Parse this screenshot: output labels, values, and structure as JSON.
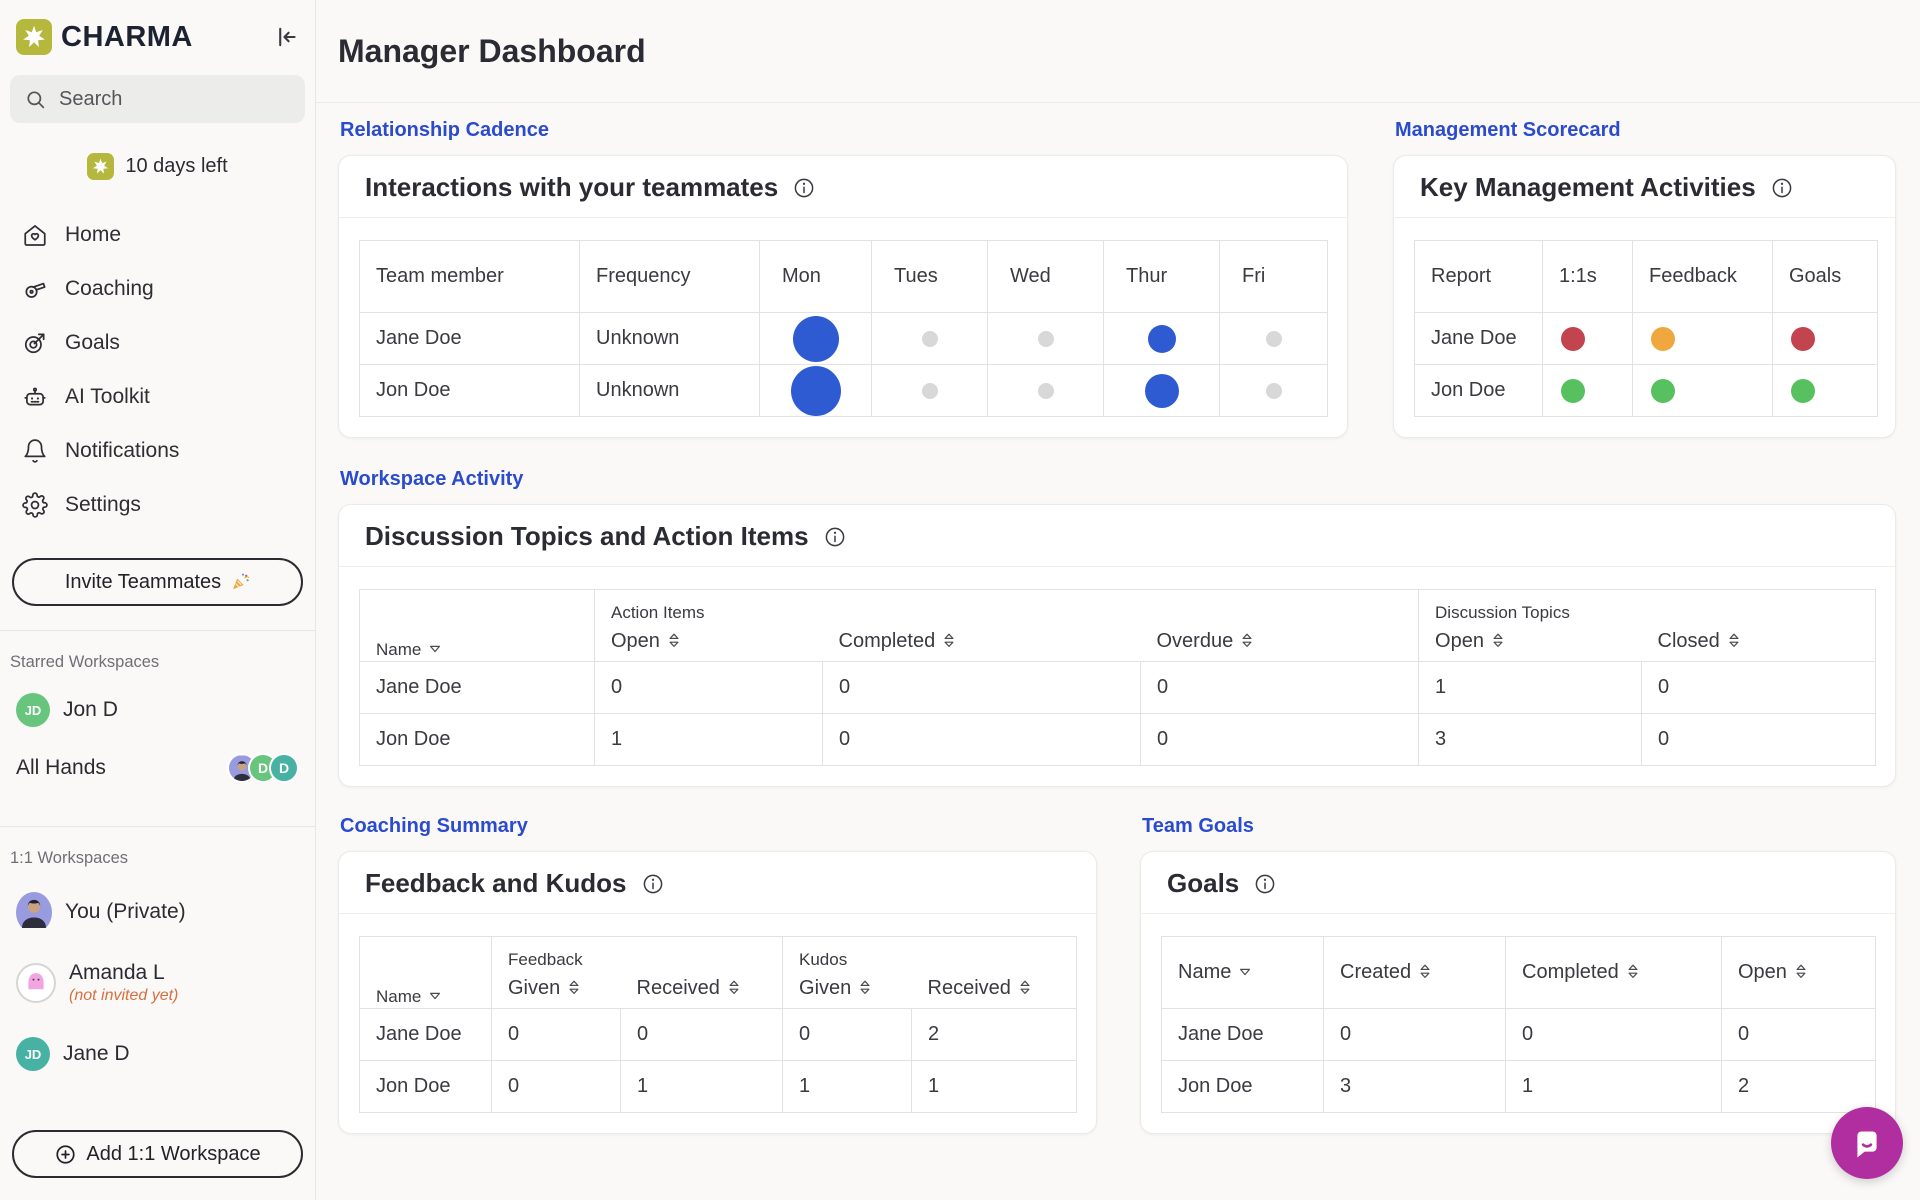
{
  "colors": {
    "blue": "#2E5BD1",
    "gray": "#D8D8D8",
    "red": "#C2444E",
    "yellow": "#EFA73E",
    "green": "#57C15F"
  },
  "brand": {
    "name": "CHARMA",
    "trial": "10 days left"
  },
  "sidebar": {
    "search_placeholder": "Search",
    "nav": [
      {
        "label": "Home"
      },
      {
        "label": "Coaching"
      },
      {
        "label": "Goals"
      },
      {
        "label": "AI Toolkit"
      },
      {
        "label": "Notifications"
      },
      {
        "label": "Settings"
      }
    ],
    "invite_button": "Invite Teammates",
    "starred_label": "Starred Workspaces",
    "starred": [
      {
        "name": "Jon D",
        "initials": "JD"
      },
      {
        "name": "All Hands",
        "cluster_initials": [
          "D",
          "D"
        ]
      }
    ],
    "one_label": "1:1 Workspaces",
    "one": [
      {
        "name": "You (Private)"
      },
      {
        "name": "Amanda L",
        "note": "(not invited yet)"
      },
      {
        "name": "Jane D",
        "initials": "JD"
      }
    ],
    "add_button": "Add 1:1 Workspace"
  },
  "header": {
    "title": "Manager Dashboard"
  },
  "interactions": {
    "section": "Relationship Cadence",
    "title": "Interactions with your teammates",
    "columns": [
      "Team member",
      "Frequency",
      "Mon",
      "Tues",
      "Wed",
      "Thur",
      "Fri"
    ],
    "rows": [
      {
        "name": "Jane Doe",
        "frequency": "Unknown",
        "days": [
          {
            "size": "lg",
            "color": "blue"
          },
          {
            "size": "sm",
            "color": "gray"
          },
          {
            "size": "sm",
            "color": "gray"
          },
          {
            "size": "md",
            "color": "blue"
          },
          {
            "size": "sm",
            "color": "gray"
          }
        ]
      },
      {
        "name": "Jon Doe",
        "frequency": "Unknown",
        "days": [
          {
            "size": "xl",
            "color": "blue"
          },
          {
            "size": "sm",
            "color": "gray"
          },
          {
            "size": "sm",
            "color": "gray"
          },
          {
            "size": "ml",
            "color": "blue"
          },
          {
            "size": "sm",
            "color": "gray"
          }
        ]
      }
    ]
  },
  "scorecard": {
    "section": "Management Scorecard",
    "title": "Key Management Activities",
    "columns": [
      "Report",
      "1:1s",
      "Feedback",
      "Goals"
    ],
    "rows": [
      {
        "name": "Jane Doe",
        "dots": [
          {
            "size": "dot",
            "color": "red"
          },
          {
            "size": "dot",
            "color": "yellow"
          },
          {
            "size": "dot",
            "color": "red"
          }
        ]
      },
      {
        "name": "Jon Doe",
        "dots": [
          {
            "size": "dot",
            "color": "green"
          },
          {
            "size": "dot",
            "color": "green"
          },
          {
            "size": "dot",
            "color": "green"
          }
        ]
      }
    ]
  },
  "discussion": {
    "section": "Workspace Activity",
    "title": "Discussion Topics and Action Items",
    "name_col": "Name",
    "groups": [
      {
        "label": "Action Items",
        "cols": [
          "Open",
          "Completed",
          "Overdue"
        ]
      },
      {
        "label": "Discussion Topics",
        "cols": [
          "Open",
          "Closed"
        ]
      }
    ],
    "rows": [
      {
        "name": "Jane Doe",
        "values": [
          "0",
          "0",
          "0",
          "1",
          "0"
        ]
      },
      {
        "name": "Jon Doe",
        "values": [
          "1",
          "0",
          "0",
          "3",
          "0"
        ]
      }
    ]
  },
  "feedback": {
    "section": "Coaching Summary",
    "title": "Feedback and Kudos",
    "name_col": "Name",
    "groups": [
      {
        "label": "Feedback",
        "cols": [
          "Given",
          "Received"
        ]
      },
      {
        "label": "Kudos",
        "cols": [
          "Given",
          "Received"
        ]
      }
    ],
    "rows": [
      {
        "name": "Jane Doe",
        "values": [
          "0",
          "0",
          "0",
          "2"
        ]
      },
      {
        "name": "Jon Doe",
        "values": [
          "0",
          "1",
          "1",
          "1"
        ]
      }
    ]
  },
  "goals": {
    "section": "Team Goals",
    "title": "Goals",
    "columns": [
      "Name",
      "Created",
      "Completed",
      "Open"
    ],
    "rows": [
      {
        "name": "Jane Doe",
        "values": [
          "0",
          "0",
          "0"
        ]
      },
      {
        "name": "Jon Doe",
        "values": [
          "3",
          "1",
          "2"
        ]
      }
    ]
  }
}
